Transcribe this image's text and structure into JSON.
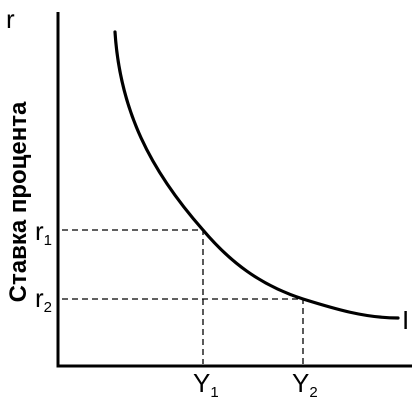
{
  "diagram": {
    "axis_y_letter": "r",
    "axis_y_title": "Ставка процента",
    "curve_label": "I",
    "ticks_y": [
      {
        "main": "r",
        "sub": "1"
      },
      {
        "main": "r",
        "sub": "2"
      }
    ],
    "ticks_x": [
      {
        "main": "Y",
        "sub": "1"
      },
      {
        "main": "Y",
        "sub": "2"
      }
    ]
  }
}
